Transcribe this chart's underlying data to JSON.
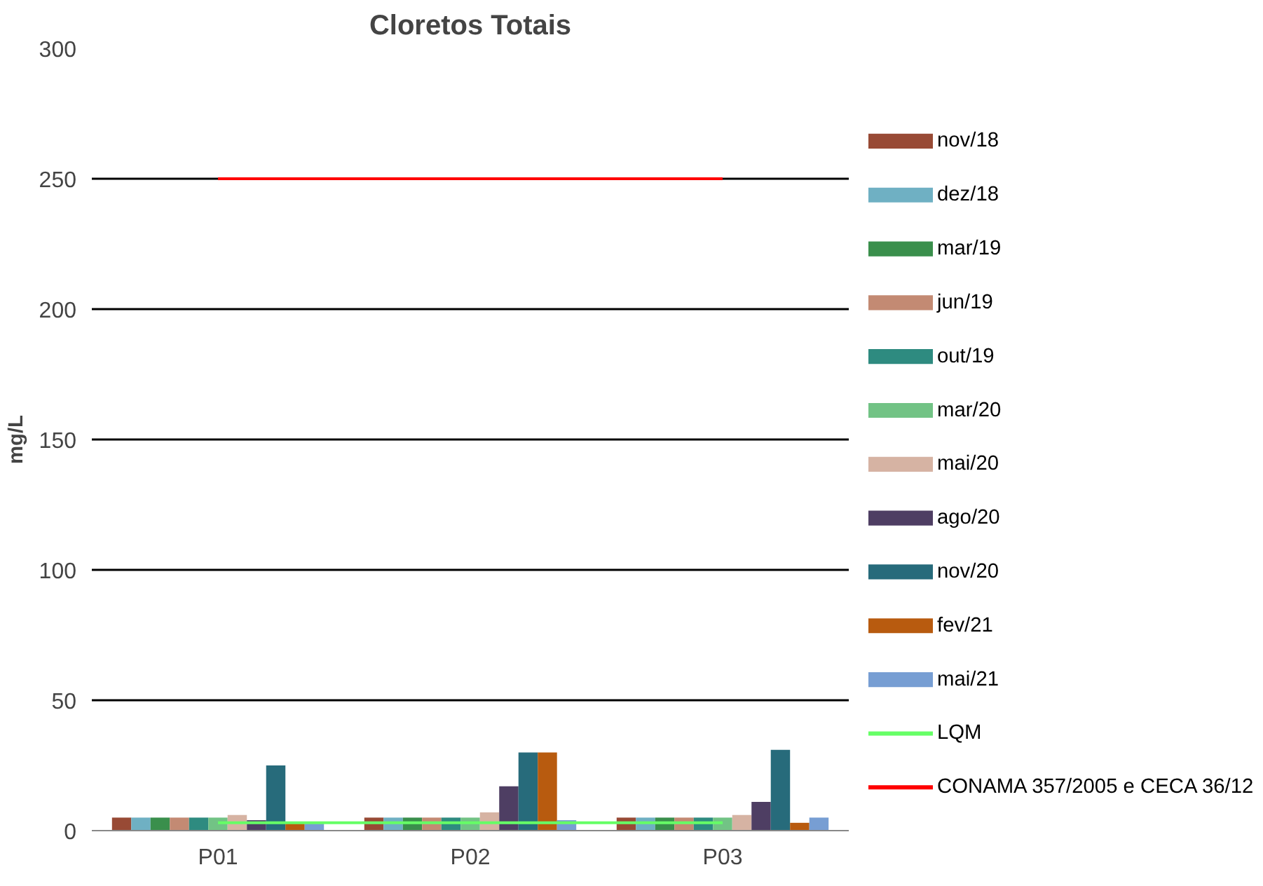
{
  "chart_data": {
    "type": "bar",
    "title": "Cloretos Totais",
    "ylabel": "mg/L",
    "categories": [
      "P01",
      "P02",
      "P03"
    ],
    "ylim": [
      0,
      300
    ],
    "yticks": [
      0,
      50,
      100,
      150,
      200,
      250,
      300
    ],
    "grid": "y",
    "legend": "right",
    "series": [
      {
        "name": "nov/18",
        "color": "#984a35",
        "values": [
          5,
          5,
          5
        ]
      },
      {
        "name": "dez/18",
        "color": "#6fb0c3",
        "values": [
          5,
          5,
          5
        ]
      },
      {
        "name": "mar/19",
        "color": "#3a8f4c",
        "values": [
          5,
          5,
          5
        ]
      },
      {
        "name": "jun/19",
        "color": "#c38a73",
        "values": [
          5,
          5,
          5
        ]
      },
      {
        "name": "out/19",
        "color": "#2e8b80",
        "values": [
          5,
          5,
          5
        ]
      },
      {
        "name": "mar/20",
        "color": "#72c385",
        "values": [
          5,
          5,
          5
        ]
      },
      {
        "name": "mai/20",
        "color": "#d6b3a3",
        "values": [
          6,
          7,
          6
        ]
      },
      {
        "name": "ago/20",
        "color": "#4e3e63",
        "values": [
          4,
          17,
          11
        ]
      },
      {
        "name": "nov/20",
        "color": "#276b7b",
        "values": [
          25,
          30,
          31
        ]
      },
      {
        "name": "fev/21",
        "color": "#b85b0f",
        "values": [
          3,
          30,
          3
        ]
      },
      {
        "name": "mai/21",
        "color": "#779ed3",
        "values": [
          3,
          4,
          5
        ]
      },
      {
        "name": "LQM",
        "type": "line",
        "color": "#66ff66",
        "values": [
          3,
          3,
          3
        ]
      },
      {
        "name": "CONAMA 357/2005 e CECA 36/12",
        "type": "line",
        "color": "#ff0000",
        "values": [
          250,
          250,
          250
        ]
      }
    ]
  }
}
